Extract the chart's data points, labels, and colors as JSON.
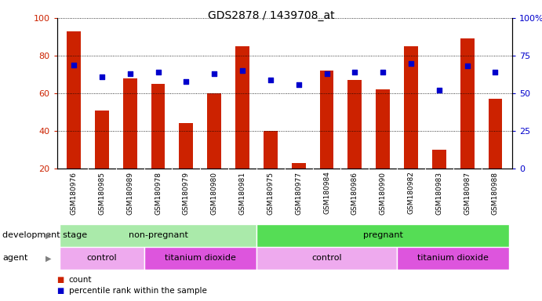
{
  "title": "GDS2878 / 1439708_at",
  "samples": [
    "GSM180976",
    "GSM180985",
    "GSM180989",
    "GSM180978",
    "GSM180979",
    "GSM180980",
    "GSM180981",
    "GSM180975",
    "GSM180977",
    "GSM180984",
    "GSM180986",
    "GSM180990",
    "GSM180982",
    "GSM180983",
    "GSM180987",
    "GSM180988"
  ],
  "counts": [
    93,
    51,
    68,
    65,
    44,
    60,
    85,
    40,
    23,
    72,
    67,
    62,
    85,
    30,
    89,
    57
  ],
  "percentiles": [
    69,
    61,
    63,
    64,
    58,
    63,
    65,
    59,
    56,
    63,
    64,
    64,
    70,
    52,
    68,
    64
  ],
  "bar_color": "#cc2200",
  "dot_color": "#0000cc",
  "ylim_left": [
    20,
    100
  ],
  "ylim_right": [
    0,
    100
  ],
  "yticks_left": [
    20,
    40,
    60,
    80,
    100
  ],
  "yticks_right": [
    0,
    25,
    50,
    75,
    100
  ],
  "yticklabels_right": [
    "0",
    "25",
    "50",
    "75",
    "100%"
  ],
  "grid_color": "#000000",
  "background_color": "#ffffff",
  "bar_color_left_axis": "#cc2200",
  "dot_color_right_axis": "#0000cc",
  "bar_width": 0.5,
  "groups_dev": [
    {
      "label": "non-pregnant",
      "start": 0,
      "end": 7,
      "color": "#aaeaaa"
    },
    {
      "label": "pregnant",
      "start": 7,
      "end": 16,
      "color": "#55dd55"
    }
  ],
  "groups_agent": [
    {
      "label": "control",
      "start": 0,
      "end": 3,
      "color": "#eeaaee"
    },
    {
      "label": "titanium dioxide",
      "start": 3,
      "end": 7,
      "color": "#dd55dd"
    },
    {
      "label": "control",
      "start": 7,
      "end": 12,
      "color": "#eeaaee"
    },
    {
      "label": "titanium dioxide",
      "start": 12,
      "end": 16,
      "color": "#dd55dd"
    }
  ],
  "legend_items": [
    {
      "label": "count",
      "color": "#cc2200"
    },
    {
      "label": "percentile rank within the sample",
      "color": "#0000cc"
    }
  ],
  "xtick_bg": "#dddddd",
  "dev_label": "development stage",
  "agent_label": "agent"
}
